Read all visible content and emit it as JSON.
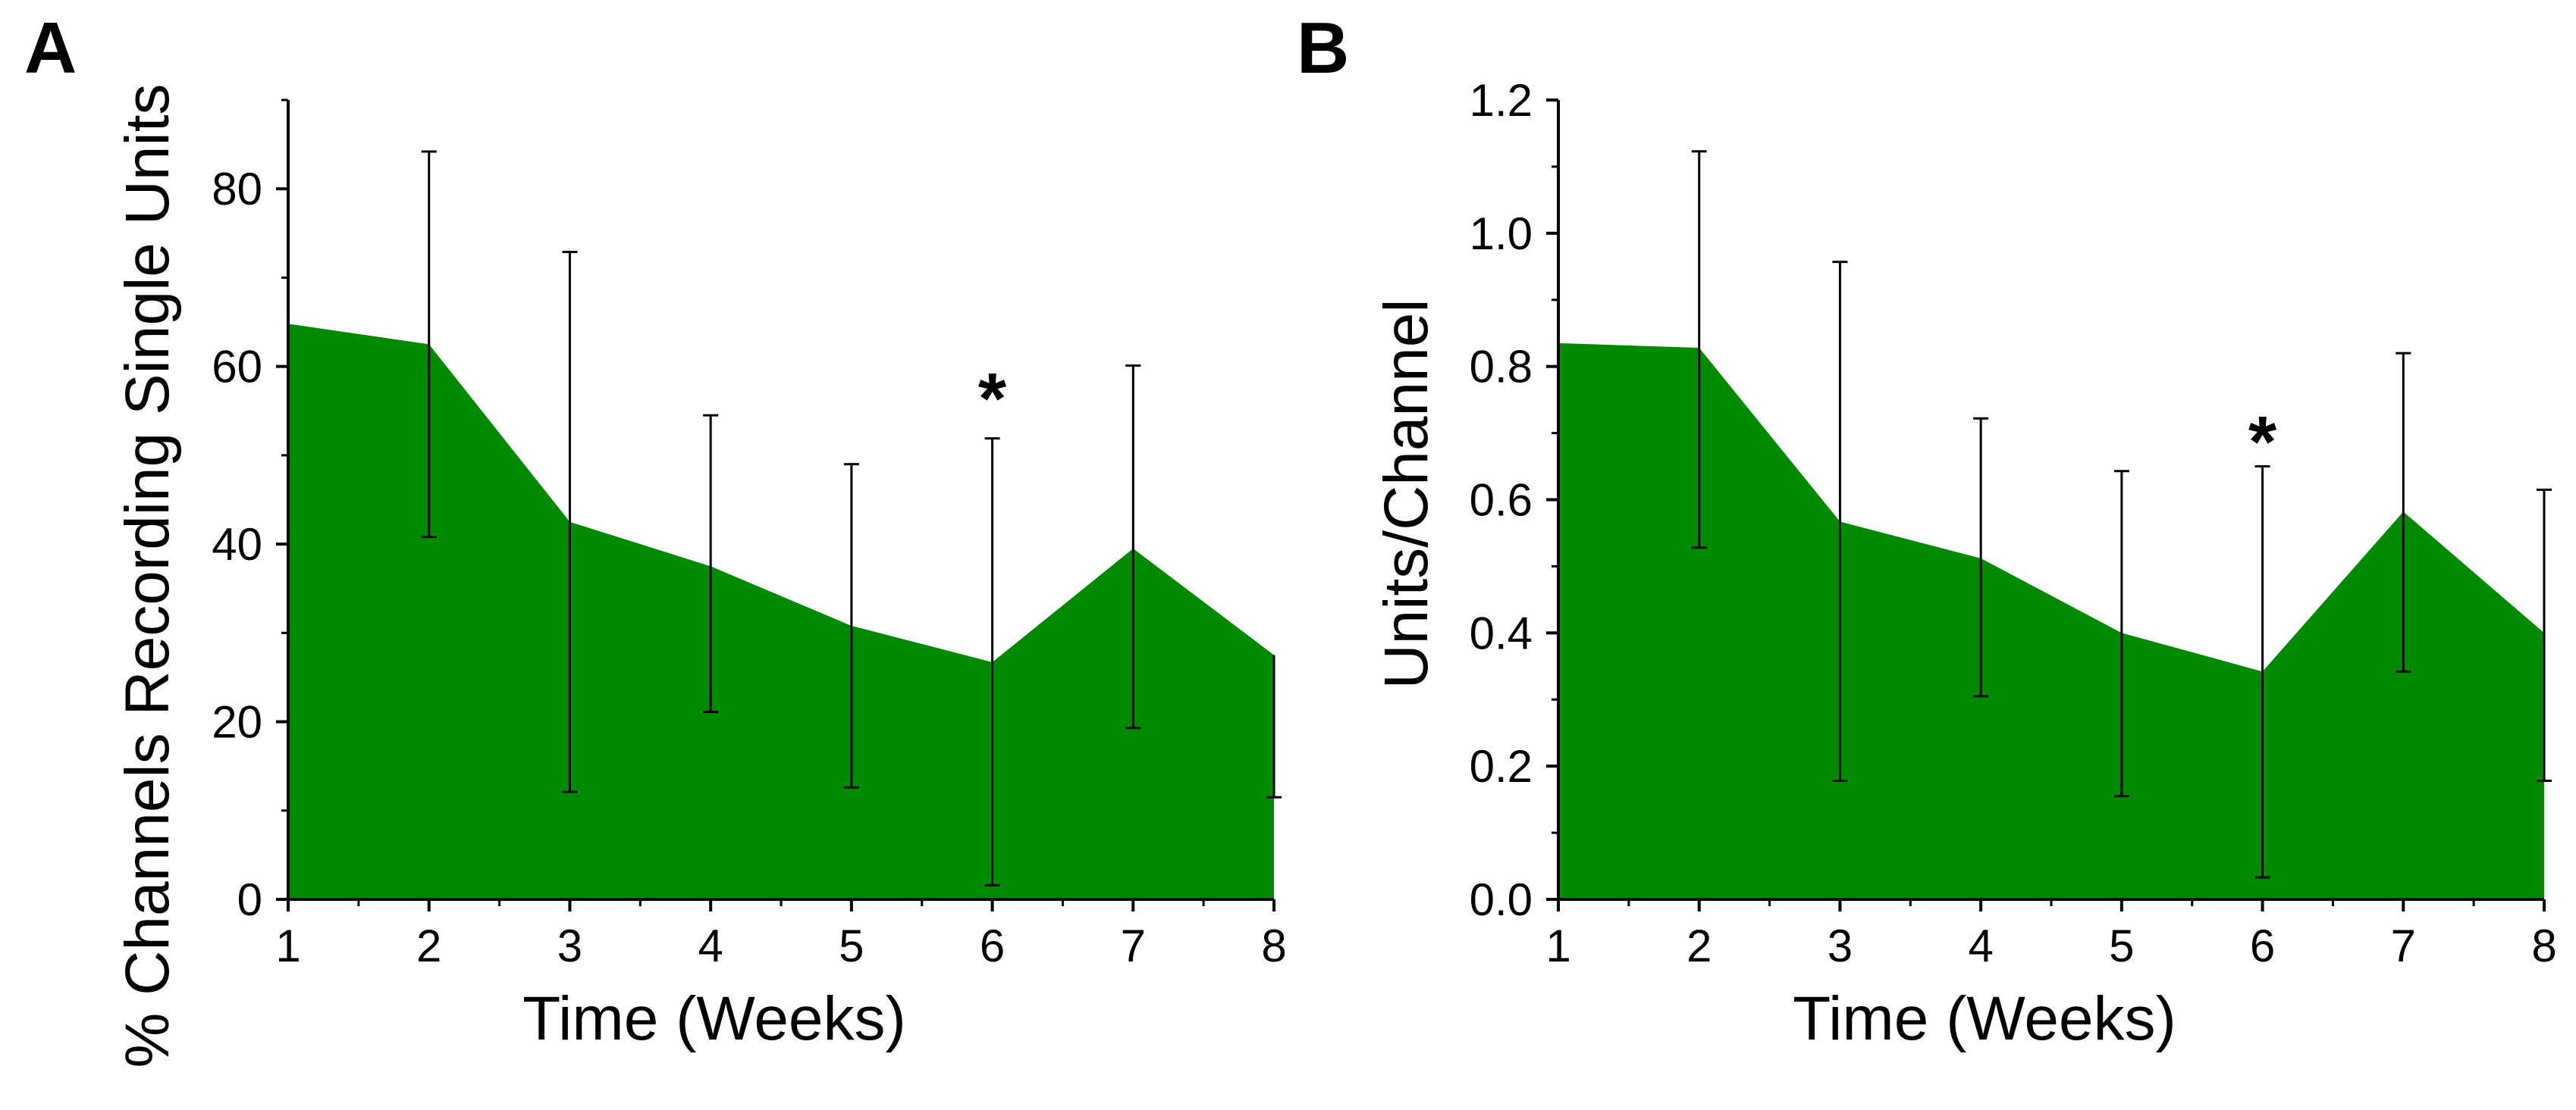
{
  "colors": {
    "area": "#008a00",
    "axis": "#000000",
    "background": "#ffffff"
  },
  "chart_data": [
    {
      "type": "area",
      "panel_label": "A",
      "x": [
        1,
        2,
        3,
        4,
        5,
        6,
        7,
        8
      ],
      "series": [
        {
          "name": "% Channels Recording Single Units",
          "values": [
            64.8,
            62.5,
            42.5,
            37.5,
            30.8,
            26.7,
            39.5,
            27.5
          ]
        }
      ],
      "error_upper": [
        null,
        84.2,
        72.9,
        54.5,
        49.0,
        51.9,
        60.1,
        null
      ],
      "error_lower": [
        null,
        40.8,
        12.1,
        21.1,
        12.6,
        1.6,
        19.3,
        11.5
      ],
      "xlim": [
        1,
        8
      ],
      "ylim": [
        0,
        90
      ],
      "xticks": [
        "1",
        "2",
        "3",
        "4",
        "5",
        "6",
        "7",
        "8"
      ],
      "yticks": [
        "0",
        "20",
        "40",
        "60",
        "80"
      ],
      "xlabel": "Time (Weeks)",
      "ylabel": "% Channels Recording Single Units",
      "annotations": [
        {
          "x": 6,
          "y": 57,
          "text": "*"
        }
      ]
    },
    {
      "type": "area",
      "panel_label": "B",
      "x": [
        1,
        2,
        3,
        4,
        5,
        6,
        7,
        8
      ],
      "series": [
        {
          "name": "Units/Channel",
          "values": [
            0.835,
            0.828,
            0.567,
            0.512,
            0.4,
            0.342,
            0.582,
            0.4
          ]
        }
      ],
      "error_upper": [
        null,
        1.123,
        0.957,
        0.722,
        0.643,
        0.65,
        0.82,
        0.615
      ],
      "error_lower": [
        null,
        0.528,
        0.178,
        0.305,
        0.155,
        0.033,
        0.342,
        0.178
      ],
      "xlim": [
        1,
        8
      ],
      "ylim": [
        0,
        1.2
      ],
      "xticks": [
        "1",
        "2",
        "3",
        "4",
        "5",
        "6",
        "7",
        "8"
      ],
      "yticks": [
        "0.0",
        "0.2",
        "0.4",
        "0.6",
        "0.8",
        "1.0",
        "1.2"
      ],
      "xlabel": "Time (Weeks)",
      "ylabel": "Units/Channel",
      "annotations": [
        {
          "x": 6,
          "y": 0.695,
          "text": "*"
        }
      ]
    }
  ]
}
